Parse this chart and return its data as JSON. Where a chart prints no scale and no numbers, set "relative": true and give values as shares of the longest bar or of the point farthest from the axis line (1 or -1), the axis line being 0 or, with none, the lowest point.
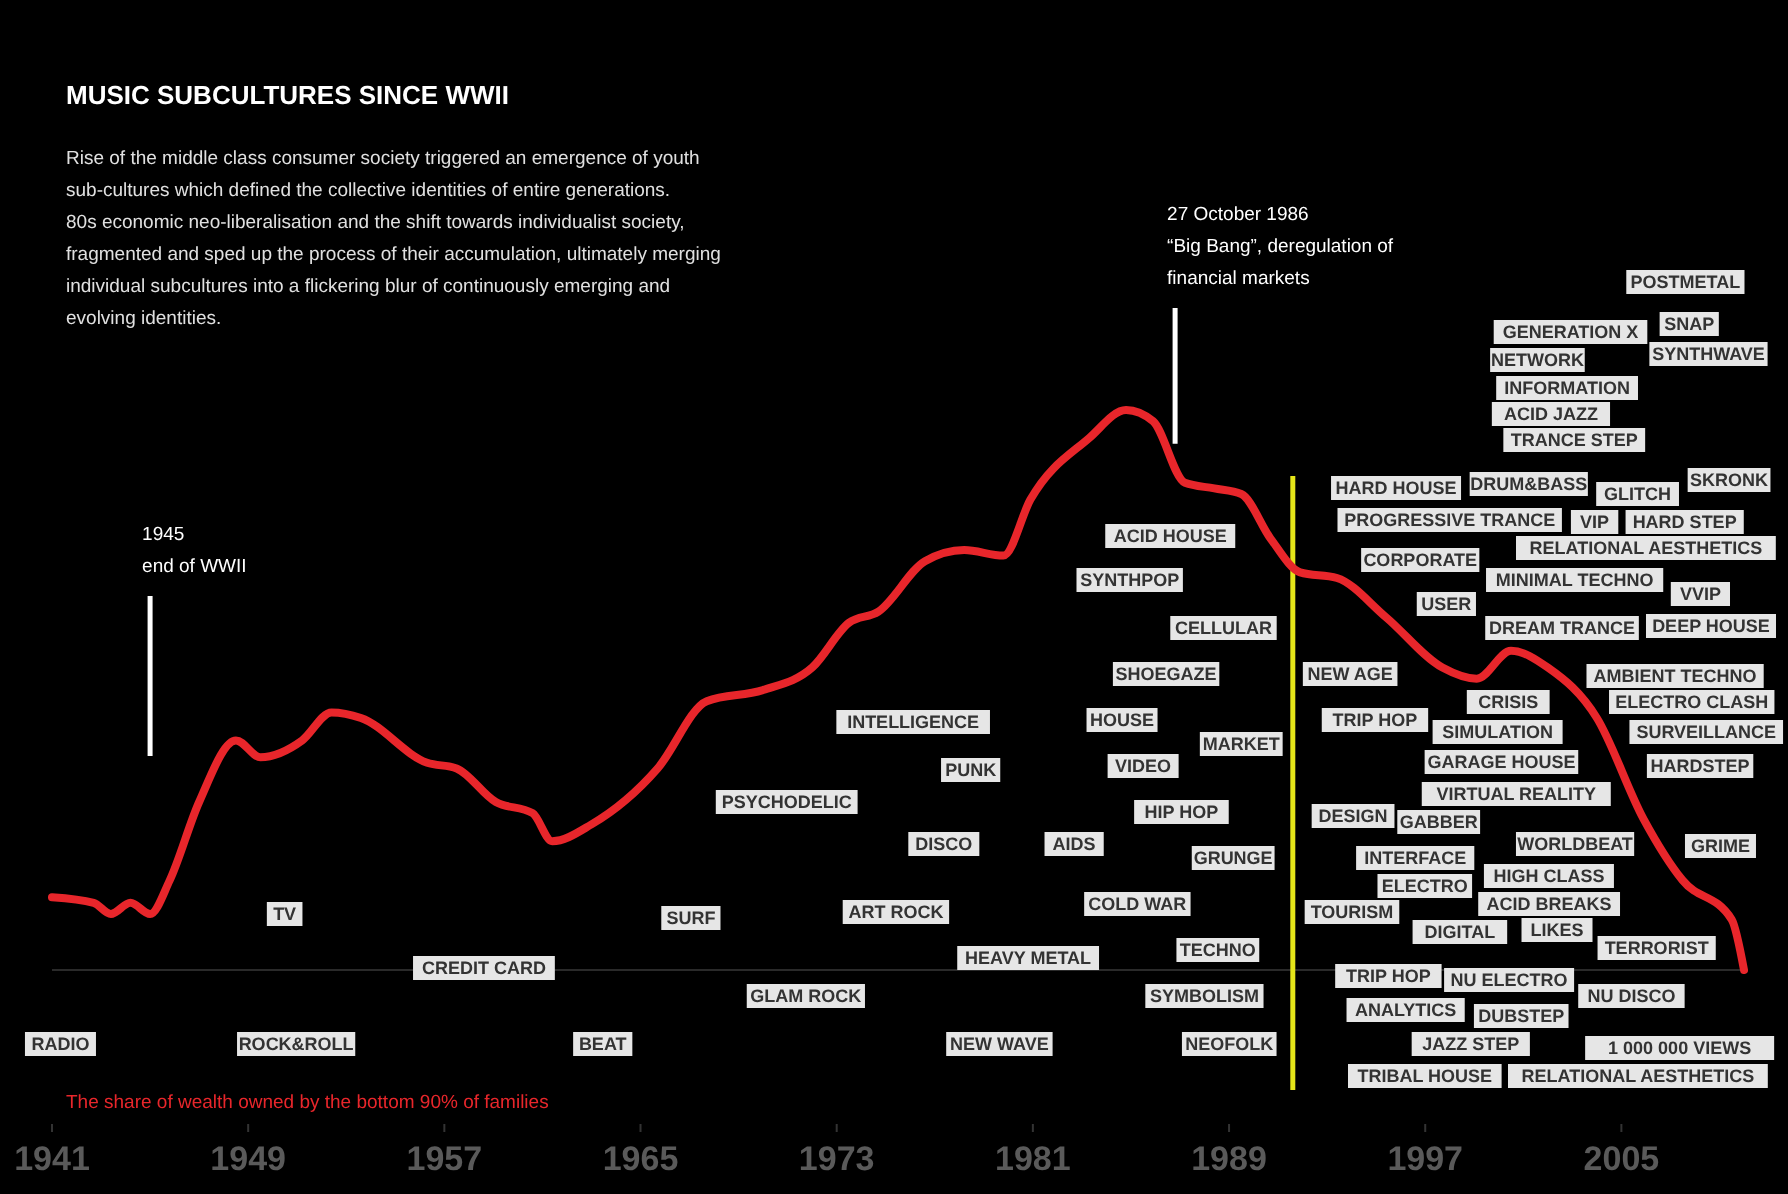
{
  "chart_data": {
    "type": "line",
    "relative": true,
    "title": "MUSIC SUBCULTURES SINCE WWII",
    "subtitle": "Rise of the middle class consumer society triggered an emergence of youth\nsub-cultures which defined the collective identities of entire generations.\n80s economic neo-liberalisation and the shift towards individualist society,\nfragmented and sped up the process of their accumulation, ultimately merging\nindividual subcultures into a flickering blur of continuously emerging and\nevolving identities.",
    "xlim": [
      1941,
      2010
    ],
    "xticks": [
      1941,
      1949,
      1957,
      1965,
      1973,
      1981,
      1989,
      1997,
      2005
    ],
    "series": [
      {
        "name": "The share of wealth owned by the bottom 90% of families",
        "color": "#e8262b",
        "x": [
          1941,
          1942.7,
          1943.4,
          1944.2,
          1945.0,
          1945.8,
          1947.0,
          1948.5,
          1949.5,
          1951.2,
          1952.4,
          1953.6,
          1956.3,
          1957.5,
          1959.1,
          1960.6,
          1961.4,
          1963.0,
          1965.7,
          1967.7,
          1970.0,
          1972.0,
          1973.5,
          1974.7,
          1976.6,
          1978.2,
          1979.8,
          1980.9,
          1983.3,
          1984.8,
          1985.9,
          1987.2,
          1988.4,
          1989.5,
          1990.7,
          1991.9,
          1993.4,
          1995.4,
          1997.7,
          1999.1,
          2000.5,
          2002.0,
          2004.0,
          2005.9,
          2007.5,
          2009.5,
          2010
        ],
        "values": [
          0.13,
          0.12,
          0.1,
          0.12,
          0.1,
          0.16,
          0.3,
          0.41,
          0.38,
          0.41,
          0.46,
          0.45,
          0.37,
          0.36,
          0.3,
          0.28,
          0.23,
          0.26,
          0.36,
          0.48,
          0.5,
          0.54,
          0.62,
          0.64,
          0.73,
          0.75,
          0.74,
          0.84,
          0.95,
          1,
          0.98,
          0.87,
          0.86,
          0.85,
          0.77,
          0.71,
          0.7,
          0.63,
          0.54,
          0.52,
          0.57,
          0.54,
          0.45,
          0.27,
          0.16,
          0.09,
          0
        ]
      }
    ],
    "ref_lines": [
      {
        "axis": "x",
        "value": 1945,
        "label": "1945\nend of WWII",
        "color": "#ffffff"
      },
      {
        "axis": "x",
        "value": 1986.8,
        "label": "27 October 1986\n“Big Bang”, deregulation of\nfinancial markets",
        "color": "#ffffff"
      },
      {
        "axis": "x",
        "value": 1991.6,
        "color": "#e6e619"
      }
    ],
    "annotations": [
      "RADIO",
      "TV",
      "ROCK&ROLL",
      "CREDIT CARD",
      "BEAT",
      "SURF",
      "PSYCHODELIC",
      "GLAM ROCK",
      "INTELLIGENCE",
      "ART ROCK",
      "PUNK",
      "DISCO",
      "HEAVY METAL",
      "NEW WAVE",
      "AIDS",
      "SYNTHPOP",
      "SHOEGAZE",
      "HOUSE",
      "VIDEO",
      "HIP HOP",
      "COLD WAR",
      "GRUNGE",
      "TECHNO",
      "SYMBOLISM",
      "NEOFOLK",
      "ACID HOUSE",
      "CORPORATE",
      "CELLULAR",
      "NEW AGE",
      "MARKET",
      "DESIGN",
      "HARD HOUSE",
      "PROGRESSIVE TRANCE",
      "MINIMAL TECHNO",
      "USER",
      "DREAM TRANCE",
      "TRIP HOP",
      "GARAGE HOUSE",
      "VIRTUAL REALITY",
      "HARDSTEP",
      "GABBER",
      "INTERFACE",
      "ELECTRO",
      "TOURISM",
      "HIGH CLASS",
      "ACID BREAKS",
      "DIGITAL",
      "LIKES",
      "NU ELECTRO",
      "TRIP HOP",
      "NU DISCO",
      "ANALYTICS",
      "JAZZ STEP",
      "TERRORIST",
      "1 000 000 VIEWS",
      "RELATIONAL AESTHETICS",
      "AMBIENT TECHNO",
      "RELATIONAL AESTHETICS",
      "WORLDBEAT",
      "ELECTRO CLASH",
      "GRIME",
      "TRIBAL HOUSE",
      "DUBSTEP",
      "SIMULATION",
      "SURVEILLANCE",
      "DEEP HOUSE",
      "DRUM&BASS",
      "VVIP",
      "VIP",
      "HARD STEP",
      "GLITCH",
      "TRANCE STEP",
      "INFORMATION",
      "NETWORK",
      "ACID JAZZ",
      "GENERATION X",
      "SYNTHWAVE",
      "SNAP",
      "POSTMETAL",
      "SKRONK",
      "CRISIS"
    ]
  }
}
